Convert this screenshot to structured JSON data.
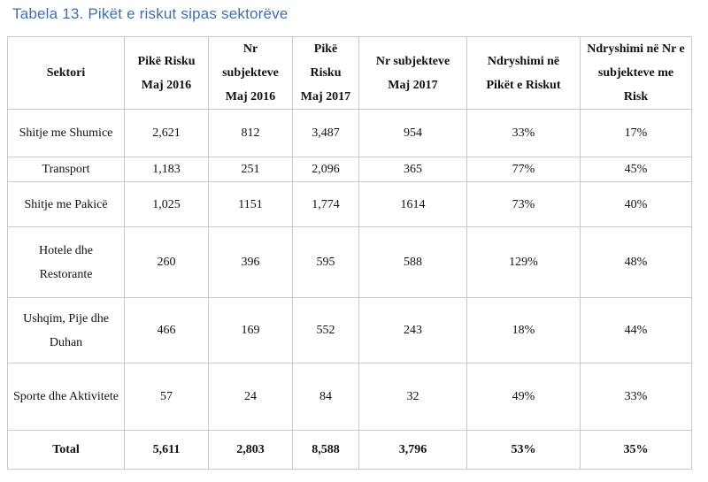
{
  "title": "Tabela 13. Pikët e riskut sipas sektorëve",
  "headers": [
    "Sektori",
    "Pikë Risku Maj 2016",
    "Nr subjekteve Maj 2016",
    "Pikë Risku Maj 2017",
    "Nr subjekteve Maj 2017",
    "Ndryshimi në Pikët e Riskut",
    "Ndryshimi në Nr e subjekteve me Risk"
  ],
  "rows": [
    [
      "Shitje me Shumice",
      "2,621",
      "812",
      "3,487",
      "954",
      "33%",
      "17%"
    ],
    [
      "Transport",
      "1,183",
      "251",
      "2,096",
      "365",
      "77%",
      "45%"
    ],
    [
      "Shitje me Pakicë",
      "1,025",
      "1151",
      "1,774",
      "1614",
      "73%",
      "40%"
    ],
    [
      "Hotele dhe Restorante",
      "260",
      "396",
      "595",
      "588",
      "129%",
      "48%"
    ],
    [
      "Ushqim, Pije dhe Duhan",
      "466",
      "169",
      "552",
      "243",
      "18%",
      "44%"
    ],
    [
      "Sporte dhe Aktivitete",
      "57",
      "24",
      "84",
      "32",
      "49%",
      "33%"
    ]
  ],
  "total": [
    "Total",
    "5,611",
    "2,803",
    "8,588",
    "3,796",
    "53%",
    "35%"
  ]
}
